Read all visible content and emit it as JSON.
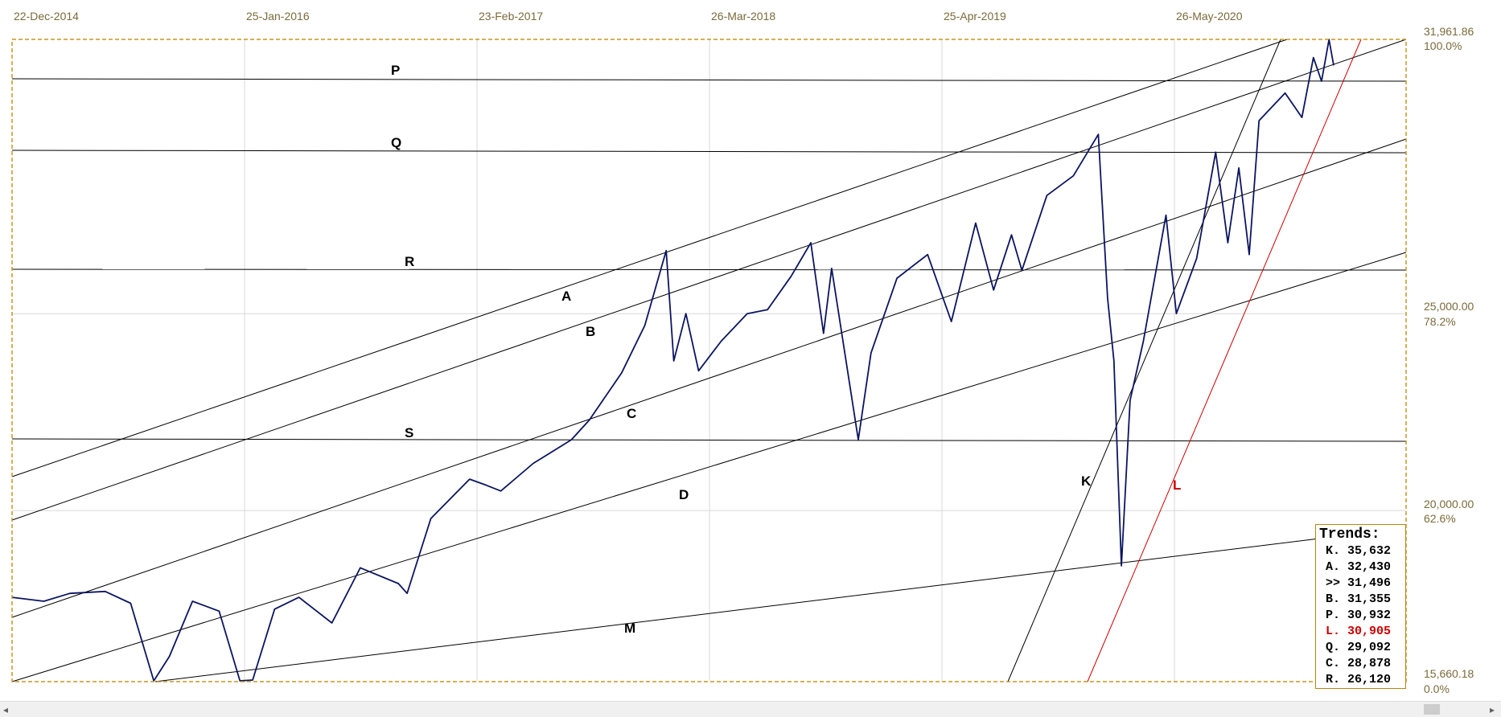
{
  "chart_data": {
    "type": "line",
    "title": "",
    "x_tick_labels": [
      "22-Dec-2014",
      "25-Jan-2016",
      "23-Feb-2017",
      "26-Mar-2018",
      "25-Apr-2019",
      "26-May-2020"
    ],
    "y_right_labels": [
      {
        "value": "31,961.86",
        "pct": "100.0%"
      },
      {
        "value": "25,000.00",
        "pct": "78.2%"
      },
      {
        "value": "20,000.00",
        "pct": "62.6%"
      },
      {
        "value": "15,660.18",
        "pct": "0.0%"
      }
    ],
    "ylim": [
      15660.18,
      31961.86
    ],
    "series": [
      {
        "color": "#0b1560",
        "points": [
          [
            "2014-12-22",
            17800
          ],
          [
            "2015-02-15",
            17700
          ],
          [
            "2015-04-01",
            17900
          ],
          [
            "2015-06-01",
            17950
          ],
          [
            "2015-07-15",
            17650
          ],
          [
            "2015-08-24",
            15680
          ],
          [
            "2015-09-20",
            16300
          ],
          [
            "2015-10-30",
            17700
          ],
          [
            "2015-12-15",
            17450
          ],
          [
            "2016-01-20",
            15680
          ],
          [
            "2016-02-11",
            15700
          ],
          [
            "2016-03-20",
            17500
          ],
          [
            "2016-05-01",
            17800
          ],
          [
            "2016-06-27",
            17150
          ],
          [
            "2016-08-15",
            18550
          ],
          [
            "2016-10-20",
            18150
          ],
          [
            "2016-11-04",
            17900
          ],
          [
            "2016-12-15",
            19800
          ],
          [
            "2017-02-20",
            20800
          ],
          [
            "2017-03-20",
            20650
          ],
          [
            "2017-04-15",
            20500
          ],
          [
            "2017-06-10",
            21200
          ],
          [
            "2017-08-15",
            21800
          ],
          [
            "2017-09-15",
            22300
          ],
          [
            "2017-11-10",
            23500
          ],
          [
            "2017-12-20",
            24700
          ],
          [
            "2018-01-26",
            26600
          ],
          [
            "2018-02-08",
            23800
          ],
          [
            "2018-03-01",
            25000
          ],
          [
            "2018-03-23",
            23550
          ],
          [
            "2018-05-01",
            24300
          ],
          [
            "2018-06-15",
            25000
          ],
          [
            "2018-07-20",
            25100
          ],
          [
            "2018-08-30",
            25950
          ],
          [
            "2018-10-03",
            26800
          ],
          [
            "2018-10-25",
            24500
          ],
          [
            "2018-11-08",
            26150
          ],
          [
            "2018-12-24",
            21800
          ],
          [
            "2019-01-15",
            24000
          ],
          [
            "2019-03-01",
            25900
          ],
          [
            "2019-04-23",
            26500
          ],
          [
            "2019-06-03",
            24800
          ],
          [
            "2019-07-15",
            27300
          ],
          [
            "2019-08-15",
            25600
          ],
          [
            "2019-09-15",
            27000
          ],
          [
            "2019-10-03",
            26100
          ],
          [
            "2019-11-15",
            28000
          ],
          [
            "2019-12-31",
            28500
          ],
          [
            "2020-02-12",
            29550
          ],
          [
            "2020-02-28",
            25400
          ],
          [
            "2020-03-10",
            23800
          ],
          [
            "2020-03-23",
            18600
          ],
          [
            "2020-04-07",
            22800
          ],
          [
            "2020-04-30",
            24300
          ],
          [
            "2020-06-08",
            27500
          ],
          [
            "2020-06-26",
            25000
          ],
          [
            "2020-07-31",
            26400
          ],
          [
            "2020-09-02",
            29100
          ],
          [
            "2020-09-23",
            26800
          ],
          [
            "2020-10-12",
            28700
          ],
          [
            "2020-10-30",
            26500
          ],
          [
            "2020-11-16",
            29900
          ],
          [
            "2020-12-31",
            30600
          ],
          [
            "2021-01-29",
            29980
          ],
          [
            "2021-02-18",
            31500
          ],
          [
            "2021-03-04",
            30900
          ],
          [
            "2021-03-17",
            31960
          ],
          [
            "2021-03-25",
            31300
          ]
        ]
      }
    ],
    "lines": [
      {
        "label": "P",
        "color": "#000000"
      },
      {
        "label": "Q",
        "color": "#000000"
      },
      {
        "label": "R",
        "color": "#000000"
      },
      {
        "label": "S",
        "color": "#000000"
      },
      {
        "label": "A",
        "color": "#000000"
      },
      {
        "label": "B",
        "color": "#000000"
      },
      {
        "label": "C",
        "color": "#000000"
      },
      {
        "label": "D",
        "color": "#000000"
      },
      {
        "label": "M",
        "color": "#000000"
      },
      {
        "label": "K",
        "color": "#000000"
      },
      {
        "label": "L",
        "color": "#cc0000"
      }
    ],
    "grid": true
  },
  "legend": {
    "title": "Trends:",
    "rows": [
      {
        "text": "K. 35,632",
        "color": "#000000"
      },
      {
        "text": "A. 32,430",
        "color": "#000000"
      },
      {
        "text": ">> 31,496",
        "color": "#000000"
      },
      {
        "text": "B. 31,355",
        "color": "#000000"
      },
      {
        "text": "P. 30,932",
        "color": "#000000"
      },
      {
        "text": "L. 30,905",
        "color": "#cc0000"
      },
      {
        "text": "Q. 29,092",
        "color": "#000000"
      },
      {
        "text": "C. 28,878",
        "color": "#000000"
      },
      {
        "text": "R. 26,120",
        "color": "#000000"
      }
    ]
  },
  "scrollbar": {
    "left_arrow": "◂",
    "right_arrow": "▸"
  }
}
